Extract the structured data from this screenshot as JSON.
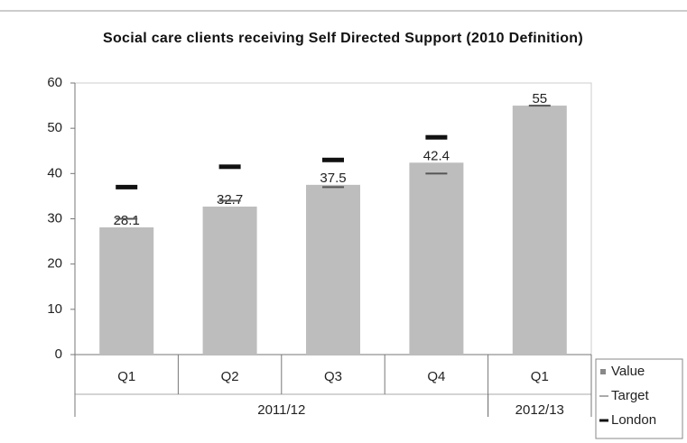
{
  "chart_data": {
    "type": "bar",
    "title": "Social care clients receiving Self Directed Support (2010 Definition)",
    "categories": [
      "Q1",
      "Q2",
      "Q3",
      "Q4",
      "Q1"
    ],
    "groups": [
      {
        "name": "2011/12",
        "span": 4
      },
      {
        "name": "2012/13",
        "span": 1
      }
    ],
    "series": [
      {
        "name": "Value",
        "color": "#bdbdbd",
        "kind": "bar",
        "values": [
          28.1,
          32.7,
          37.5,
          42.4,
          55
        ]
      },
      {
        "name": "Target",
        "color": "#555555",
        "kind": "marker",
        "values": [
          30,
          34,
          37,
          40,
          55
        ]
      },
      {
        "name": "London",
        "color": "#111111",
        "kind": "marker",
        "values": [
          37,
          41.5,
          43,
          48,
          null
        ]
      }
    ],
    "ylim": [
      0,
      60
    ],
    "yticks": [
      0,
      10,
      20,
      30,
      40,
      50,
      60
    ],
    "legend": "right"
  }
}
